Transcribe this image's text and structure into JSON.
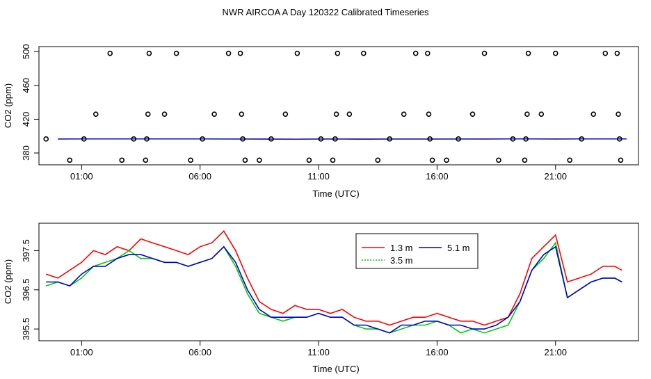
{
  "figure": {
    "title": "NWR AIRCOA A  Day 120322  Calibrated Timeseries"
  },
  "chart_data": [
    {
      "type": "scatter",
      "xlabel": "Time (UTC)",
      "ylabel": "CO2 (ppm)",
      "xlim": [
        -0.8,
        24.5
      ],
      "ylim": [
        366,
        506
      ],
      "x_ticks": [
        1,
        6,
        11,
        16,
        21
      ],
      "x_tick_labels": [
        "01:00",
        "06:00",
        "11:00",
        "16:00",
        "21:00"
      ],
      "y_ticks": [
        380,
        420,
        460,
        500
      ],
      "y_tick_labels": [
        "380",
        "420",
        "460",
        "500"
      ],
      "points": [
        [
          -0.5,
          396.6
        ],
        [
          0.5,
          371.5
        ],
        [
          1.1,
          396.6
        ],
        [
          1.6,
          426
        ],
        [
          2.2,
          498
        ],
        [
          2.7,
          371.5
        ],
        [
          3.2,
          396.6
        ],
        [
          3.7,
          371.5
        ],
        [
          3.75,
          396.6
        ],
        [
          3.8,
          426
        ],
        [
          3.85,
          498
        ],
        [
          4.5,
          426
        ],
        [
          5.0,
          498
        ],
        [
          5.6,
          371.5
        ],
        [
          6.1,
          396.6
        ],
        [
          6.6,
          426
        ],
        [
          7.2,
          498
        ],
        [
          7.7,
          498
        ],
        [
          7.75,
          426
        ],
        [
          7.8,
          396.6
        ],
        [
          7.9,
          371.5
        ],
        [
          8.5,
          371.5
        ],
        [
          9.0,
          396.6
        ],
        [
          9.6,
          426
        ],
        [
          10.1,
          498
        ],
        [
          10.6,
          371.5
        ],
        [
          11.1,
          396.6
        ],
        [
          11.6,
          371.5
        ],
        [
          11.7,
          396.6
        ],
        [
          11.75,
          426
        ],
        [
          11.8,
          498
        ],
        [
          12.3,
          426
        ],
        [
          12.9,
          498
        ],
        [
          13.5,
          371.5
        ],
        [
          14.0,
          396.6
        ],
        [
          14.6,
          426
        ],
        [
          15.1,
          498
        ],
        [
          15.6,
          498
        ],
        [
          15.65,
          426
        ],
        [
          15.7,
          396.6
        ],
        [
          15.8,
          371.5
        ],
        [
          16.4,
          371.5
        ],
        [
          16.9,
          396.6
        ],
        [
          17.5,
          426
        ],
        [
          18.0,
          498
        ],
        [
          18.6,
          371.5
        ],
        [
          19.2,
          396.6
        ],
        [
          19.7,
          371.5
        ],
        [
          19.75,
          396.6
        ],
        [
          19.8,
          426
        ],
        [
          19.85,
          498
        ],
        [
          20.4,
          426
        ],
        [
          21.0,
          498
        ],
        [
          21.6,
          371.5
        ],
        [
          22.1,
          396.6
        ],
        [
          22.6,
          426
        ],
        [
          23.1,
          498
        ],
        [
          23.6,
          498
        ],
        [
          23.65,
          426
        ],
        [
          23.7,
          396.6
        ],
        [
          23.75,
          371.5
        ]
      ],
      "series": [
        {
          "name": "1.3 m",
          "color": "#ff0000",
          "values": [
            396.7,
            396.8,
            396.8,
            396.7,
            396.7,
            396.8,
            396.8,
            396.7,
            396.6,
            396.6,
            396.5,
            396.6,
            396.6,
            396.6,
            396.6,
            396.6,
            396.6,
            396.7,
            396.7,
            396.8,
            396.8,
            396.7,
            396.7,
            396.7,
            396.7
          ]
        },
        {
          "name": "3.5 m",
          "color": "#00cc00",
          "values": [
            396.5,
            396.6,
            396.7,
            396.7,
            396.7,
            396.7,
            396.7,
            396.6,
            396.5,
            396.5,
            396.4,
            396.5,
            396.5,
            396.3,
            396.5,
            396.5,
            396.5,
            396.6,
            396.5,
            396.6,
            396.6,
            396.5,
            396.6,
            396.6,
            396.6
          ]
        },
        {
          "name": "5.1 m",
          "color": "#0000cc",
          "values": [
            396.5,
            396.6,
            396.6,
            396.6,
            396.6,
            396.6,
            396.6,
            396.5,
            396.5,
            396.4,
            396.4,
            396.5,
            396.5,
            396.4,
            396.5,
            396.5,
            396.5,
            396.5,
            396.5,
            396.6,
            396.6,
            396.5,
            396.6,
            396.6,
            396.6
          ]
        }
      ]
    },
    {
      "type": "line",
      "xlabel": "Time (UTC)",
      "ylabel": "CO2 (ppm)",
      "xlim": [
        -0.8,
        24.5
      ],
      "ylim": [
        395.2,
        398.2
      ],
      "x_ticks": [
        1,
        6,
        11,
        16,
        21
      ],
      "x_tick_labels": [
        "01:00",
        "06:00",
        "11:00",
        "16:00",
        "21:00"
      ],
      "y_ticks": [
        395.5,
        396.5,
        397.5
      ],
      "y_tick_labels": [
        "395.5",
        "396.5",
        "397.5"
      ],
      "legend": "top-center",
      "x": [
        -0.5,
        0.0,
        0.5,
        1.0,
        1.5,
        2.0,
        2.5,
        3.0,
        3.5,
        4.0,
        4.5,
        5.0,
        5.5,
        6.0,
        6.5,
        7.0,
        7.5,
        8.0,
        8.5,
        9.0,
        9.5,
        10.0,
        10.5,
        11.0,
        11.5,
        12.0,
        12.5,
        13.0,
        13.5,
        14.0,
        14.5,
        15.0,
        15.5,
        16.0,
        16.5,
        17.0,
        17.5,
        18.0,
        18.5,
        19.0,
        19.5,
        20.0,
        20.5,
        21.0,
        21.5,
        22.0,
        22.5,
        23.0,
        23.5,
        23.8
      ],
      "series": [
        {
          "name": "1.3 m",
          "color": "#ff0000",
          "values": [
            396.9,
            396.8,
            397.0,
            397.2,
            397.5,
            397.4,
            397.6,
            397.5,
            397.8,
            397.7,
            397.6,
            397.5,
            397.4,
            397.6,
            397.7,
            398.0,
            397.5,
            396.8,
            396.2,
            396.0,
            395.9,
            396.1,
            396.0,
            396.0,
            395.9,
            396.0,
            395.8,
            395.7,
            395.7,
            395.6,
            395.7,
            395.8,
            395.8,
            395.9,
            395.8,
            395.7,
            395.7,
            395.6,
            395.7,
            395.8,
            396.4,
            397.3,
            397.6,
            397.9,
            396.7,
            396.8,
            396.9,
            397.1,
            397.1,
            397.0
          ]
        },
        {
          "name": "3.5 m",
          "color": "#00cc00",
          "values": [
            396.6,
            396.7,
            396.6,
            396.8,
            397.1,
            397.2,
            397.3,
            397.5,
            397.3,
            397.3,
            397.2,
            397.2,
            397.1,
            397.2,
            397.3,
            397.6,
            397.1,
            396.4,
            395.9,
            395.8,
            395.7,
            395.8,
            395.8,
            395.9,
            395.8,
            395.8,
            395.6,
            395.5,
            395.5,
            395.4,
            395.5,
            395.6,
            395.6,
            395.7,
            395.6,
            395.4,
            395.5,
            395.4,
            395.5,
            395.6,
            396.2,
            397.0,
            397.3,
            397.7,
            396.3,
            396.5,
            396.7,
            396.8,
            396.8,
            396.7
          ]
        },
        {
          "name": "5.1 m",
          "color": "#0000cc",
          "values": [
            396.7,
            396.7,
            396.6,
            396.9,
            397.1,
            397.1,
            397.3,
            397.4,
            397.4,
            397.3,
            397.2,
            397.2,
            397.1,
            397.2,
            397.3,
            397.6,
            397.2,
            396.5,
            396.0,
            395.8,
            395.8,
            395.8,
            395.8,
            395.9,
            395.8,
            395.8,
            395.6,
            395.6,
            395.5,
            395.4,
            395.6,
            395.6,
            395.7,
            395.7,
            395.6,
            395.6,
            395.5,
            395.5,
            395.6,
            395.8,
            396.2,
            397.0,
            397.4,
            397.6,
            396.3,
            396.5,
            396.7,
            396.8,
            396.8,
            396.7
          ]
        }
      ]
    }
  ]
}
